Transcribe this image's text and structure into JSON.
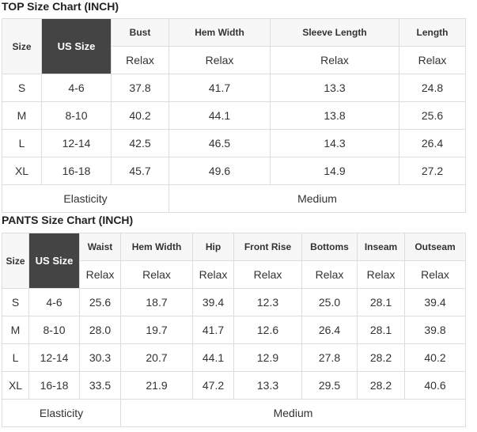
{
  "top": {
    "title": "TOP Size Chart (INCH)",
    "size_header": "Size",
    "us_header": "US Size",
    "columns": [
      "Bust",
      "Hem Width",
      "Sleeve Length",
      "Length"
    ],
    "sub_label": "Relax",
    "rows": [
      {
        "size": "S",
        "us": "4-6",
        "values": [
          "37.8",
          "41.7",
          "13.3",
          "24.8"
        ]
      },
      {
        "size": "M",
        "us": "8-10",
        "values": [
          "40.2",
          "44.1",
          "13.8",
          "25.6"
        ]
      },
      {
        "size": "L",
        "us": "12-14",
        "values": [
          "42.5",
          "46.5",
          "14.3",
          "26.4"
        ]
      },
      {
        "size": "XL",
        "us": "16-18",
        "values": [
          "45.7",
          "49.6",
          "14.9",
          "27.2"
        ]
      }
    ],
    "footer_label": "Elasticity",
    "footer_value": "Medium"
  },
  "pants": {
    "title": "PANTS Size Chart (INCH)",
    "size_header": "Size",
    "us_header": "US Size",
    "columns": [
      "Waist",
      "Hem Width",
      "Hip",
      "Front Rise",
      "Bottoms",
      "Inseam",
      "Outseam"
    ],
    "sub_label": "Relax",
    "rows": [
      {
        "size": "S",
        "us": "4-6",
        "values": [
          "25.6",
          "18.7",
          "39.4",
          "12.3",
          "25.0",
          "28.1",
          "39.4"
        ]
      },
      {
        "size": "M",
        "us": "8-10",
        "values": [
          "28.0",
          "19.7",
          "41.7",
          "12.6",
          "26.4",
          "28.1",
          "39.8"
        ]
      },
      {
        "size": "L",
        "us": "12-14",
        "values": [
          "30.3",
          "20.7",
          "44.1",
          "12.9",
          "27.8",
          "28.2",
          "40.2"
        ]
      },
      {
        "size": "XL",
        "us": "16-18",
        "values": [
          "33.5",
          "21.9",
          "47.2",
          "13.3",
          "29.5",
          "28.2",
          "40.6"
        ]
      }
    ],
    "footer_label": "Elasticity",
    "footer_value": "Medium"
  }
}
